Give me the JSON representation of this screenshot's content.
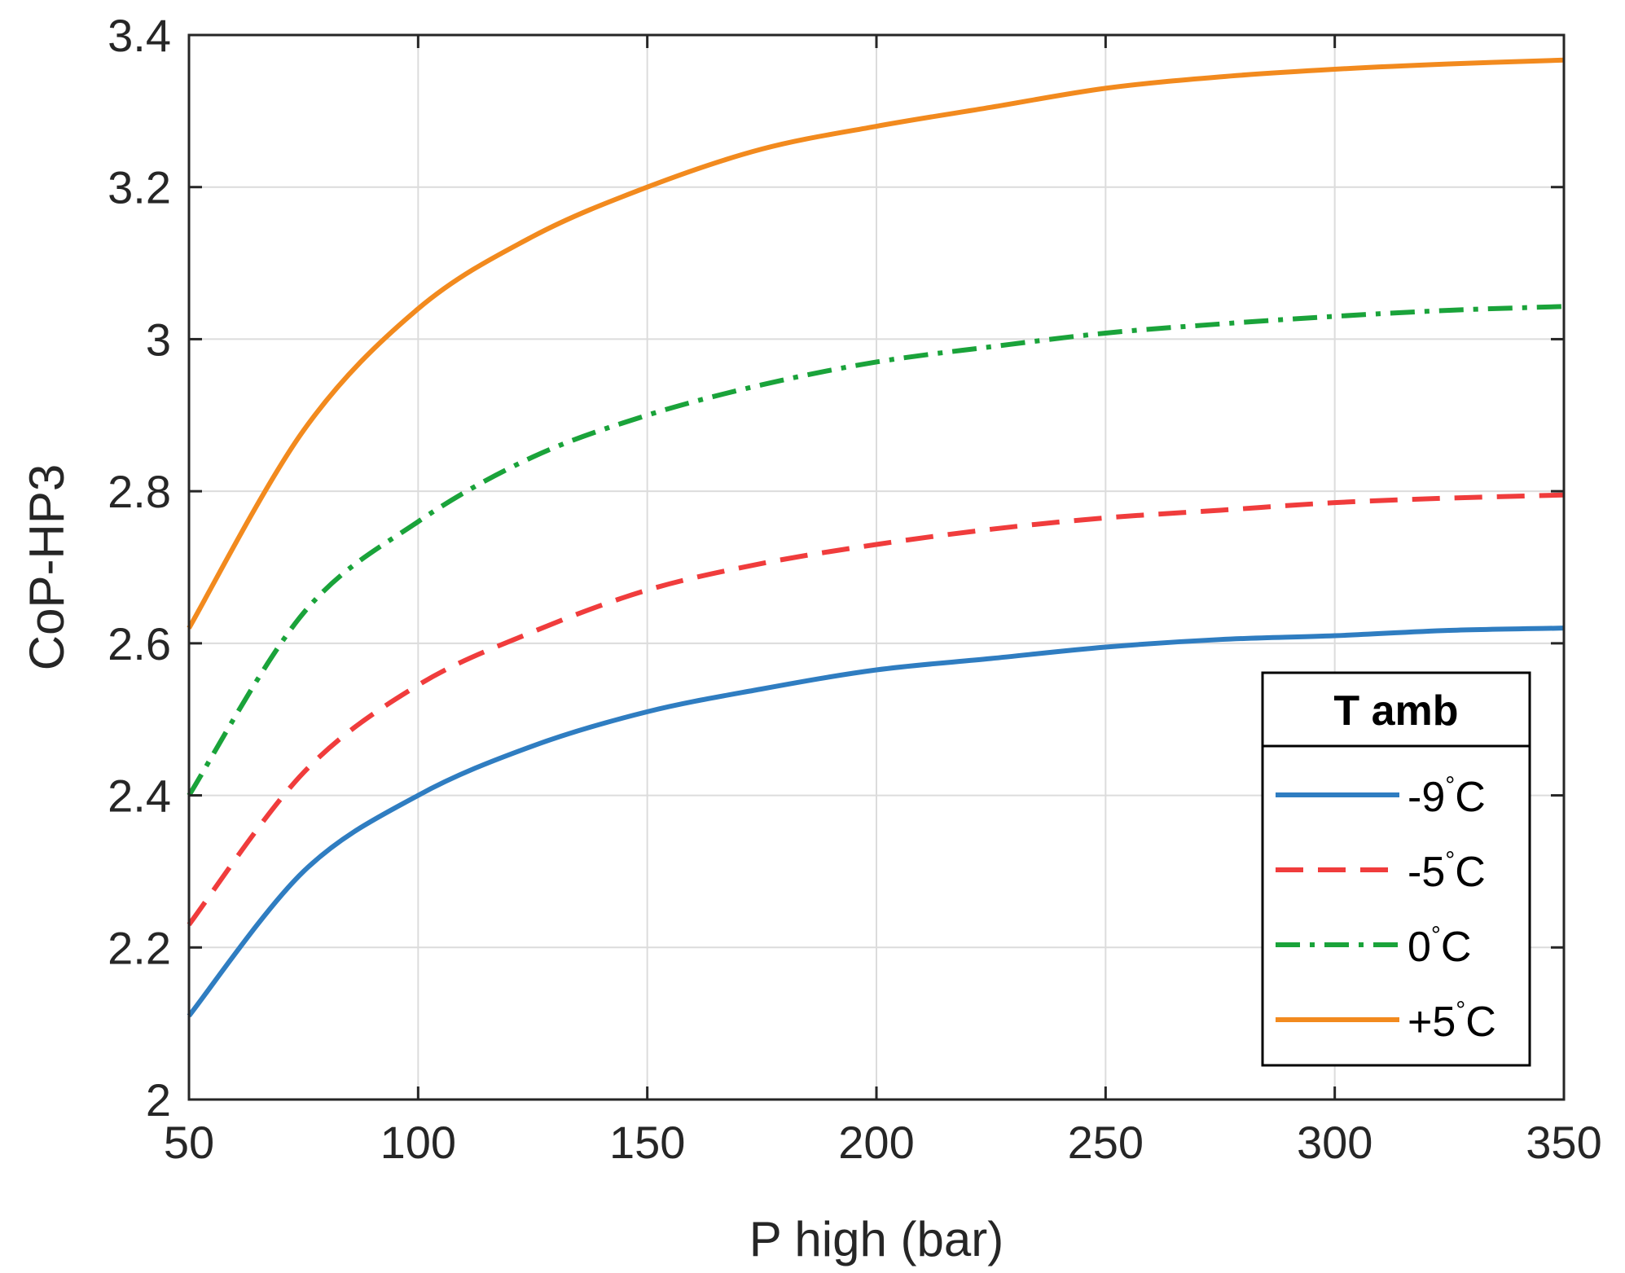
{
  "chart_data": {
    "type": "line",
    "xlabel": "P high (bar)",
    "ylabel": "CoP-HP3",
    "xlim": [
      50,
      350
    ],
    "ylim": [
      2,
      3.4
    ],
    "xticks": [
      50,
      100,
      150,
      200,
      250,
      300,
      350
    ],
    "yticks": [
      2,
      2.2,
      2.4,
      2.6,
      2.8,
      3,
      3.2,
      3.4
    ],
    "ytick_labels": [
      "2",
      "2.2",
      "2.4",
      "2.6",
      "2.8",
      "3",
      "3.2",
      "3.4"
    ],
    "grid": true,
    "legend": {
      "title": "T amb",
      "placement": "bottom-right"
    },
    "x": [
      50,
      75,
      100,
      125,
      150,
      175,
      200,
      225,
      250,
      275,
      300,
      325,
      350
    ],
    "series": [
      {
        "name": "-9°C",
        "deg_prefix": "-9",
        "color": "#2f7dc1",
        "dash": "solid",
        "values": [
          2.11,
          2.3,
          2.4,
          2.465,
          2.51,
          2.54,
          2.565,
          2.58,
          2.595,
          2.605,
          2.61,
          2.617,
          2.62
        ]
      },
      {
        "name": "-5°C",
        "deg_prefix": "-5",
        "color": "#f03c3c",
        "dash": "dashed",
        "values": [
          2.23,
          2.43,
          2.545,
          2.615,
          2.67,
          2.705,
          2.73,
          2.75,
          2.765,
          2.775,
          2.785,
          2.791,
          2.795
        ]
      },
      {
        "name": "0°C",
        "deg_prefix": "0",
        "color": "#1aa33a",
        "dash": "dashdot",
        "values": [
          2.4,
          2.64,
          2.76,
          2.845,
          2.9,
          2.94,
          2.97,
          2.99,
          3.008,
          3.02,
          3.03,
          3.038,
          3.043
        ]
      },
      {
        "name": "+5°C",
        "deg_prefix": "+5",
        "color": "#f28a1e",
        "dash": "solid",
        "values": [
          2.62,
          2.88,
          3.04,
          3.135,
          3.2,
          3.25,
          3.28,
          3.305,
          3.33,
          3.345,
          3.355,
          3.362,
          3.367
        ]
      }
    ]
  }
}
